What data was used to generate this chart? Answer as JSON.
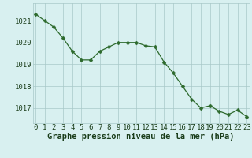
{
  "x": [
    0,
    1,
    2,
    3,
    4,
    5,
    6,
    7,
    8,
    9,
    10,
    11,
    12,
    13,
    14,
    15,
    16,
    17,
    18,
    19,
    20,
    21,
    22,
    23
  ],
  "y": [
    1021.3,
    1021.0,
    1020.7,
    1020.2,
    1019.6,
    1019.2,
    1019.2,
    1019.6,
    1019.8,
    1020.0,
    1020.0,
    1020.0,
    1019.85,
    1019.8,
    1019.1,
    1018.6,
    1018.0,
    1017.4,
    1017.0,
    1017.1,
    1016.85,
    1016.7,
    1016.9,
    1016.6
  ],
  "line_color": "#2d6a2d",
  "marker": "D",
  "marker_size": 2.5,
  "bg_color": "#d8f0f0",
  "grid_color": "#a8c8c8",
  "xlabel": "Graphe pression niveau de la mer (hPa)",
  "xlabel_color": "#1a3d1a",
  "xlabel_fontsize": 7.5,
  "tick_color": "#1a3d1a",
  "tick_fontsize": 6.5,
  "ylim": [
    1016.3,
    1021.8
  ],
  "xlim": [
    -0.3,
    23.3
  ],
  "yticks": [
    1017,
    1018,
    1019,
    1020,
    1021
  ],
  "xticks": [
    0,
    1,
    2,
    3,
    4,
    5,
    6,
    7,
    8,
    9,
    10,
    11,
    12,
    13,
    14,
    15,
    16,
    17,
    18,
    19,
    20,
    21,
    22,
    23
  ]
}
